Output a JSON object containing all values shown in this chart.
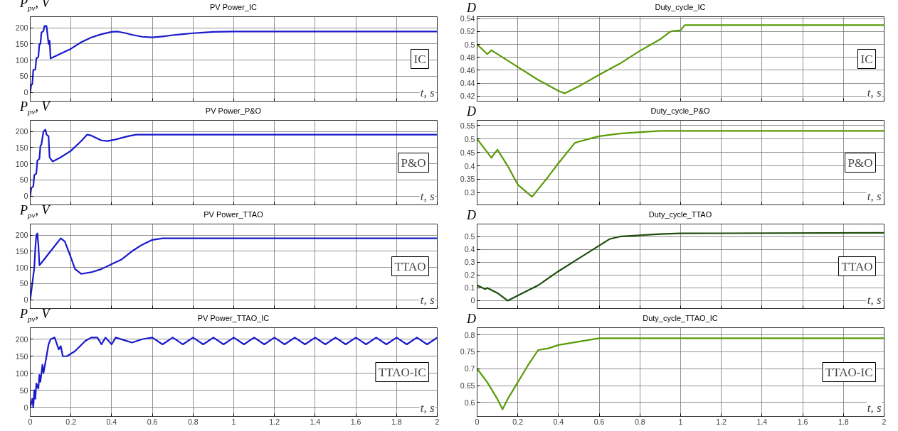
{
  "chart_data": [
    {
      "type": "line",
      "title": "PV Power_IC",
      "ylabel": "P$_{pv}$, V",
      "xlabel": "t, s",
      "annotations": [
        "IC"
      ],
      "grid": true,
      "tick_labels": "y",
      "xlim": [
        0,
        2
      ],
      "xticks": [
        0,
        0.2,
        0.4,
        0.6,
        0.8,
        1,
        1.2,
        1.4,
        1.6,
        1.8,
        2
      ],
      "ylim": [
        -27,
        234
      ],
      "yticks": [
        0,
        50,
        100,
        150,
        200
      ],
      "series": [
        {
          "color": "#1a1acc",
          "x": [
            0,
            0.005,
            0.01,
            0.015,
            0.025,
            0.03,
            0.04,
            0.045,
            0.05,
            0.055,
            0.065,
            0.07,
            0.08,
            0.09,
            0.095,
            0.1,
            0.15,
            0.2,
            0.25,
            0.3,
            0.35,
            0.4,
            0.43,
            0.47,
            0.5,
            0.55,
            0.6,
            0.65,
            0.7,
            0.75,
            0.8,
            0.85,
            0.9,
            1.0,
            2.0
          ],
          "values": [
            0,
            25,
            25,
            70,
            70,
            105,
            110,
            150,
            150,
            185,
            190,
            205,
            205,
            150,
            160,
            105,
            120,
            135,
            155,
            170,
            180,
            187,
            188,
            183,
            178,
            172,
            170,
            173,
            177,
            180,
            183,
            185,
            187,
            188,
            188
          ]
        }
      ]
    },
    {
      "type": "line",
      "title": "Duty_cycle_IC",
      "ylabel": "D",
      "xlabel": "t, s",
      "annotations": [
        "IC"
      ],
      "grid": true,
      "tick_labels": "y",
      "xlim": [
        0,
        2
      ],
      "xticks": [
        0,
        0.2,
        0.4,
        0.6,
        0.8,
        1,
        1.2,
        1.4,
        1.6,
        1.8,
        2
      ],
      "ylim": [
        0.412,
        0.543
      ],
      "yticks": [
        0.42,
        0.44,
        0.46,
        0.48,
        0.5,
        0.52,
        0.54
      ],
      "series": [
        {
          "color": "#5a9a08",
          "x": [
            0,
            0.05,
            0.07,
            0.1,
            0.2,
            0.3,
            0.4,
            0.43,
            0.5,
            0.6,
            0.7,
            0.8,
            0.9,
            0.95,
            1.0,
            1.02,
            2
          ],
          "values": [
            0.5,
            0.485,
            0.491,
            0.485,
            0.465,
            0.445,
            0.428,
            0.424,
            0.435,
            0.453,
            0.47,
            0.49,
            0.508,
            0.52,
            0.522,
            0.53,
            0.53
          ]
        }
      ]
    },
    {
      "type": "line",
      "title": "PV Power_P&O",
      "ylabel": "P$_{pv}$, V",
      "xlabel": "t, s",
      "annotations": [
        "P&O"
      ],
      "grid": true,
      "tick_labels": "y",
      "xlim": [
        0,
        2
      ],
      "xticks": [
        0,
        0.2,
        0.4,
        0.6,
        0.8,
        1,
        1.2,
        1.4,
        1.6,
        1.8,
        2
      ],
      "ylim": [
        -27,
        234
      ],
      "yticks": [
        0,
        50,
        100,
        150,
        200
      ],
      "series": [
        {
          "color": "#1a1acc",
          "x": [
            0,
            0.005,
            0.015,
            0.02,
            0.03,
            0.035,
            0.045,
            0.05,
            0.055,
            0.065,
            0.075,
            0.08,
            0.09,
            0.095,
            0.1,
            0.11,
            0.15,
            0.2,
            0.25,
            0.28,
            0.3,
            0.35,
            0.38,
            0.42,
            0.48,
            0.52,
            2
          ],
          "values": [
            0,
            25,
            30,
            65,
            70,
            110,
            115,
            155,
            160,
            200,
            205,
            190,
            185,
            120,
            115,
            107,
            120,
            140,
            170,
            190,
            187,
            172,
            170,
            175,
            185,
            190,
            190
          ]
        }
      ]
    },
    {
      "type": "line",
      "title": "Duty_cycle_P&O",
      "ylabel": "D",
      "xlabel": "t, s",
      "annotations": [
        "P&O"
      ],
      "grid": true,
      "tick_labels": "y",
      "xlim": [
        0,
        2
      ],
      "xticks": [
        0,
        0.2,
        0.4,
        0.6,
        0.8,
        1,
        1.2,
        1.4,
        1.6,
        1.8,
        2
      ],
      "ylim": [
        0.255,
        0.569
      ],
      "yticks": [
        0.3,
        0.35,
        0.4,
        0.45,
        0.5,
        0.55
      ],
      "series": [
        {
          "color": "#5a9a08",
          "x": [
            0,
            0.07,
            0.1,
            0.15,
            0.2,
            0.27,
            0.35,
            0.4,
            0.48,
            0.5,
            0.55,
            0.6,
            0.7,
            0.8,
            0.9,
            2
          ],
          "values": [
            0.5,
            0.43,
            0.46,
            0.4,
            0.33,
            0.285,
            0.36,
            0.41,
            0.485,
            0.49,
            0.5,
            0.51,
            0.52,
            0.525,
            0.53,
            0.53
          ]
        }
      ]
    },
    {
      "type": "line",
      "title": "PV Power_TTAO",
      "ylabel": "P$_{pv}$, V",
      "xlabel": "t, s",
      "annotations": [
        "TTAO"
      ],
      "grid": true,
      "tick_labels": "y",
      "xlim": [
        0,
        2
      ],
      "xticks": [
        0,
        0.2,
        0.4,
        0.6,
        0.8,
        1,
        1.2,
        1.4,
        1.6,
        1.8,
        2
      ],
      "ylim": [
        -27,
        234
      ],
      "yticks": [
        0,
        50,
        100,
        150,
        200
      ],
      "series": [
        {
          "color": "#1a1acc",
          "x": [
            0,
            0.01,
            0.02,
            0.025,
            0.03,
            0.035,
            0.04,
            0.045,
            0.05,
            0.1,
            0.15,
            0.17,
            0.2,
            0.22,
            0.25,
            0.3,
            0.35,
            0.4,
            0.45,
            0.5,
            0.55,
            0.6,
            0.65,
            2
          ],
          "values": [
            0,
            50,
            100,
            160,
            200,
            205,
            170,
            107,
            110,
            150,
            190,
            180,
            130,
            95,
            80,
            85,
            95,
            110,
            125,
            150,
            170,
            185,
            190,
            190
          ]
        }
      ]
    },
    {
      "type": "line",
      "title": "Duty_cycle_TTAO",
      "ylabel": "D",
      "xlabel": "t, s",
      "annotations": [
        "TTAO"
      ],
      "grid": true,
      "tick_labels": "y",
      "xlim": [
        0,
        2
      ],
      "xticks": [
        0,
        0.2,
        0.4,
        0.6,
        0.8,
        1,
        1.2,
        1.4,
        1.6,
        1.8,
        2
      ],
      "ylim": [
        -0.061,
        0.598
      ],
      "yticks": [
        0,
        0.1,
        0.2,
        0.3,
        0.4,
        0.5
      ],
      "series": [
        {
          "color": "#1e4d0c",
          "x": [
            0,
            0.04,
            0.05,
            0.1,
            0.15,
            0.2,
            0.3,
            0.4,
            0.5,
            0.6,
            0.65,
            0.7,
            0.8,
            0.9,
            1.0,
            2
          ],
          "values": [
            0.12,
            0.09,
            0.1,
            0.06,
            0.0,
            0.04,
            0.12,
            0.23,
            0.33,
            0.43,
            0.48,
            0.5,
            0.51,
            0.52,
            0.525,
            0.53
          ]
        }
      ]
    },
    {
      "type": "line",
      "title": "PV Power_TTAO_IC",
      "ylabel": "P$_{pv}$, V",
      "xlabel": "t, s",
      "annotations": [
        "TTAO-IC"
      ],
      "grid": true,
      "xlim": [
        0,
        2
      ],
      "xticks": [
        0,
        0.2,
        0.4,
        0.6,
        0.8,
        1,
        1.2,
        1.4,
        1.6,
        1.8,
        2
      ],
      "ylim": [
        -27,
        234
      ],
      "yticks": [
        0,
        50,
        100,
        150,
        200
      ],
      "series": [
        {
          "color": "#1a1acc",
          "x": [
            0,
            0.01,
            0.015,
            0.02,
            0.025,
            0.03,
            0.04,
            0.045,
            0.05,
            0.06,
            0.065,
            0.08,
            0.09,
            0.1,
            0.12,
            0.14,
            0.15,
            0.16,
            0.18,
            0.22,
            0.27,
            0.3,
            0.33,
            0.35,
            0.37,
            0.4,
            0.42,
            0.5,
            0.55,
            0.6,
            0.65,
            0.7,
            0.75,
            0.8,
            0.85,
            0.9,
            0.95,
            1.0,
            1.05,
            1.1,
            1.15,
            1.2,
            1.25,
            1.3,
            1.35,
            1.4,
            1.45,
            1.5,
            1.55,
            1.6,
            1.65,
            1.7,
            1.75,
            1.8,
            1.85,
            1.9,
            1.95,
            2.0
          ],
          "values": [
            0,
            25,
            0,
            50,
            25,
            70,
            55,
            95,
            75,
            125,
            100,
            150,
            185,
            200,
            205,
            170,
            180,
            150,
            150,
            165,
            195,
            205,
            205,
            185,
            205,
            185,
            205,
            190,
            200,
            205,
            185,
            205,
            185,
            205,
            185,
            205,
            185,
            205,
            185,
            205,
            185,
            205,
            185,
            205,
            185,
            205,
            185,
            205,
            185,
            205,
            185,
            205,
            185,
            205,
            185,
            205,
            185,
            205
          ]
        }
      ]
    },
    {
      "type": "line",
      "title": "Duty_cycle_TTAO_IC",
      "ylabel": "D",
      "xlabel": "t, s",
      "annotations": [
        "TTAO-IC"
      ],
      "grid": true,
      "xlim": [
        0,
        2
      ],
      "xticks": [
        0,
        0.2,
        0.4,
        0.6,
        0.8,
        1,
        1.2,
        1.4,
        1.6,
        1.8,
        2
      ],
      "ylim": [
        0.559,
        0.821
      ],
      "yticks": [
        0.6,
        0.65,
        0.7,
        0.75,
        0.8
      ],
      "series": [
        {
          "color": "#5a9a08",
          "x": [
            0,
            0.05,
            0.1,
            0.125,
            0.15,
            0.2,
            0.25,
            0.3,
            0.35,
            0.4,
            0.5,
            0.6,
            2
          ],
          "values": [
            0.7,
            0.66,
            0.61,
            0.58,
            0.61,
            0.66,
            0.71,
            0.755,
            0.76,
            0.77,
            0.78,
            0.79,
            0.79
          ]
        }
      ]
    }
  ]
}
